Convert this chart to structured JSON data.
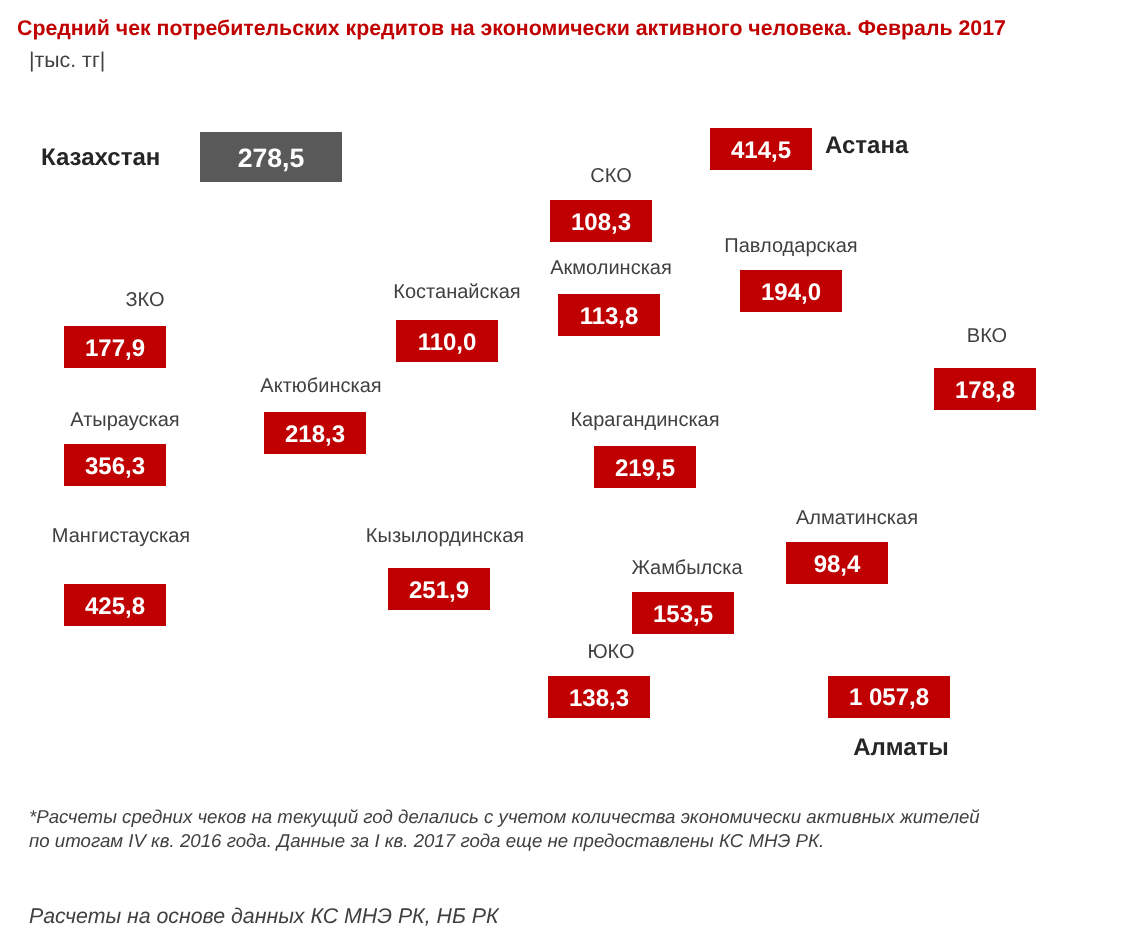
{
  "chart_data": {
    "type": "other",
    "title": "Средний чек потребительских кредитов на экономически активного человека. Февраль 2017",
    "subtitle": "|тыс. тг|",
    "categories": [
      "Казахстан",
      "СКО",
      "Астана",
      "Павлодарская",
      "Акмолинская",
      "Костанайская",
      "ЗКО",
      "ВКО",
      "Атырауская",
      "Актюбинская",
      "Карагандинская",
      "Алматинская",
      "Мангистауская",
      "Кызылординская",
      "Жамбылска",
      "ЮКО",
      "Алматы"
    ],
    "values": [
      278.5,
      108.3,
      414.5,
      194.0,
      113.8,
      110.0,
      177.9,
      178.8,
      356.3,
      218.3,
      219.5,
      98.4,
      425.8,
      251.9,
      153.5,
      138.3,
      1057.8
    ],
    "colors": [
      "#595959",
      "#c00000",
      "#c00000",
      "#c00000",
      "#c00000",
      "#c00000",
      "#c00000",
      "#c00000",
      "#c00000",
      "#c00000",
      "#c00000",
      "#c00000",
      "#c00000",
      "#c00000",
      "#c00000",
      "#c00000",
      "#c00000"
    ],
    "value_labels": [
      "278,5",
      "108,3",
      "414,5",
      "194,0",
      "113,8",
      "110,0",
      "177,9",
      "178,8",
      "356,3",
      "218,3",
      "219,5",
      "98,4",
      "425,8",
      "251,9",
      "153,5",
      "138,3",
      "1 057,8"
    ],
    "annotations": [
      "*Расчеты средних чеков на текущий год делались с учетом количества экономически активных жителей по итогам IV кв. 2016 года. Данные за I кв. 2017 года еще не предоставлены КС МНЭ РК.",
      "Расчеты на основе данных КС МНЭ РК, НБ РК"
    ]
  }
}
